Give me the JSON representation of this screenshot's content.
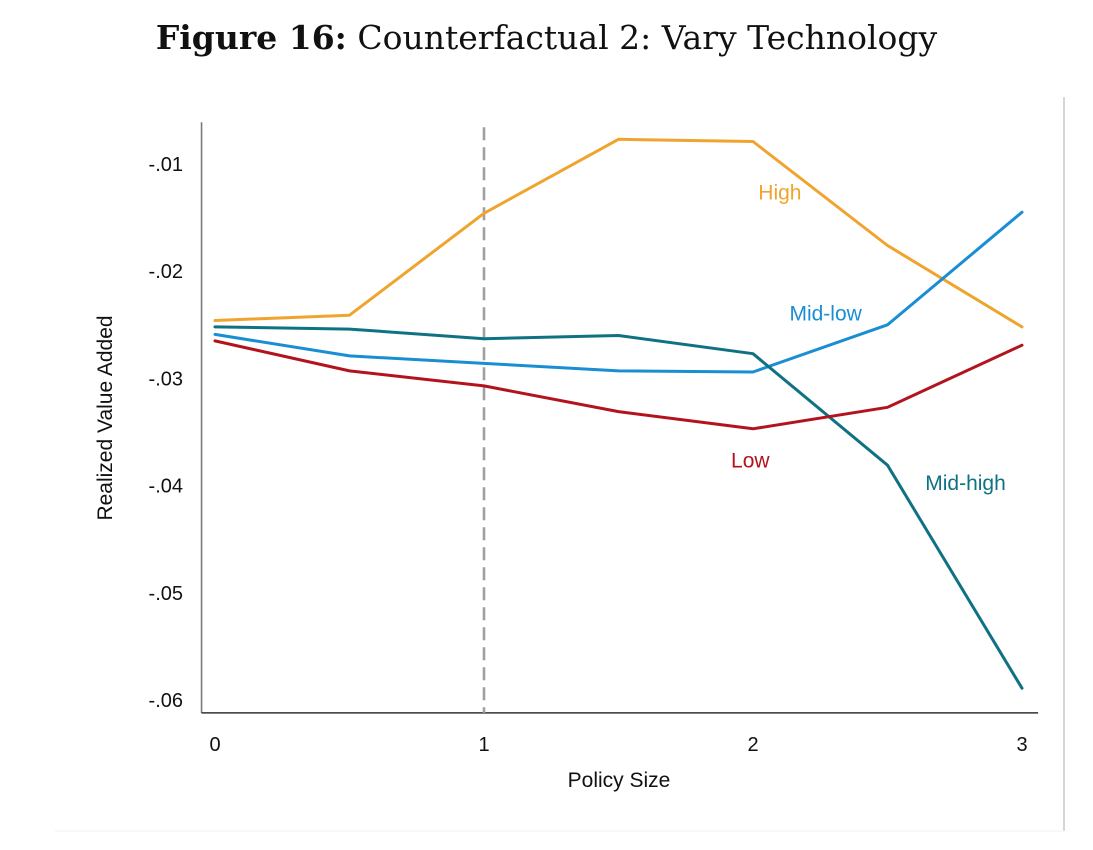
{
  "figure": {
    "number_label": "Figure 16:",
    "caption": "Counterfactual 2: Vary Technology"
  },
  "chart_data": {
    "type": "line",
    "title": "Figure 16: Counterfactual 2: Vary Technology",
    "xlabel": "Policy Size",
    "ylabel": "Realized Value Added",
    "x": [
      0,
      0.5,
      1,
      1.5,
      2,
      2.5,
      3
    ],
    "xticks": [
      0,
      1,
      2,
      3
    ],
    "xtick_labels": [
      "0",
      "1",
      "2",
      "3"
    ],
    "yticks": [
      -0.01,
      -0.02,
      -0.03,
      -0.04,
      -0.05,
      -0.06
    ],
    "ytick_labels": [
      "-.01",
      "-.02",
      "-.03",
      "-.04",
      "-.05",
      "-.06"
    ],
    "xlim": [
      -0.05,
      3.06
    ],
    "ylim": [
      -0.0612,
      -0.0061
    ],
    "grid": false,
    "legend": "inline labels",
    "reference_line": {
      "orientation": "vertical",
      "x": 1,
      "style": "dashed",
      "color": "#a0a0a0"
    },
    "series": [
      {
        "name": "High",
        "color": "#f0a42e",
        "values": [
          -0.0246,
          -0.0241,
          -0.0146,
          -0.0077,
          -0.0079,
          -0.0176,
          -0.0252
        ],
        "label_at": [
          2.1,
          -0.0133
        ]
      },
      {
        "name": "Mid-low",
        "color": "#1a8ed3",
        "values": [
          -0.0259,
          -0.0279,
          -0.0286,
          -0.0293,
          -0.0294,
          -0.025,
          -0.0145
        ],
        "label_at": [
          2.27,
          -0.0246
        ]
      },
      {
        "name": "Mid-high",
        "color": "#0f7283",
        "values": [
          -0.0252,
          -0.0254,
          -0.0263,
          -0.026,
          -0.0277,
          -0.0381,
          -0.0589
        ],
        "label_at": [
          2.79,
          -0.0404
        ]
      },
      {
        "name": "Low",
        "color": "#b3131d",
        "values": [
          -0.0265,
          -0.0293,
          -0.0307,
          -0.0331,
          -0.0347,
          -0.0327,
          -0.0269
        ],
        "label_at": [
          1.99,
          -0.0383
        ]
      }
    ]
  }
}
